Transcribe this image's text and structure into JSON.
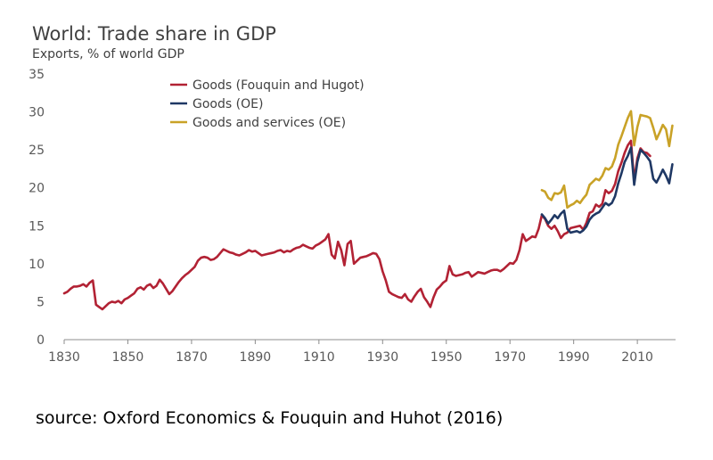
{
  "chart_data": {
    "type": "line",
    "title": "World: Trade share in GDP",
    "ylabel": "Exports, % of world GDP",
    "xlabel": "",
    "xlim": [
      1830,
      2022
    ],
    "ylim": [
      0,
      35
    ],
    "x_ticks": [
      1830,
      1850,
      1870,
      1890,
      1910,
      1930,
      1950,
      1970,
      1990,
      2010
    ],
    "y_ticks": [
      0,
      5,
      10,
      15,
      20,
      25,
      30,
      35
    ],
    "grid": false,
    "legend_position": "top-center",
    "series": [
      {
        "name": "Goods (Fouquin and Hugot)",
        "color": "#B22234",
        "points": [
          [
            1830,
            6.1
          ],
          [
            1831,
            6.3
          ],
          [
            1832,
            6.7
          ],
          [
            1833,
            7.0
          ],
          [
            1834,
            7.0
          ],
          [
            1835,
            7.1
          ],
          [
            1836,
            7.3
          ],
          [
            1837,
            7.0
          ],
          [
            1838,
            7.5
          ],
          [
            1839,
            7.8
          ],
          [
            1840,
            4.6
          ],
          [
            1841,
            4.3
          ],
          [
            1842,
            4.0
          ],
          [
            1843,
            4.4
          ],
          [
            1844,
            4.8
          ],
          [
            1845,
            5.0
          ],
          [
            1846,
            4.9
          ],
          [
            1847,
            5.1
          ],
          [
            1848,
            4.8
          ],
          [
            1849,
            5.3
          ],
          [
            1850,
            5.5
          ],
          [
            1851,
            5.8
          ],
          [
            1852,
            6.1
          ],
          [
            1853,
            6.7
          ],
          [
            1854,
            6.9
          ],
          [
            1855,
            6.6
          ],
          [
            1856,
            7.1
          ],
          [
            1857,
            7.3
          ],
          [
            1858,
            6.8
          ],
          [
            1859,
            7.1
          ],
          [
            1860,
            7.9
          ],
          [
            1861,
            7.4
          ],
          [
            1862,
            6.7
          ],
          [
            1863,
            6.0
          ],
          [
            1864,
            6.4
          ],
          [
            1865,
            7.0
          ],
          [
            1866,
            7.6
          ],
          [
            1867,
            8.1
          ],
          [
            1868,
            8.5
          ],
          [
            1869,
            8.8
          ],
          [
            1870,
            9.2
          ],
          [
            1871,
            9.6
          ],
          [
            1872,
            10.4
          ],
          [
            1873,
            10.8
          ],
          [
            1874,
            10.9
          ],
          [
            1875,
            10.8
          ],
          [
            1876,
            10.5
          ],
          [
            1877,
            10.6
          ],
          [
            1878,
            10.9
          ],
          [
            1879,
            11.4
          ],
          [
            1880,
            11.9
          ],
          [
            1881,
            11.7
          ],
          [
            1882,
            11.5
          ],
          [
            1883,
            11.4
          ],
          [
            1884,
            11.2
          ],
          [
            1885,
            11.1
          ],
          [
            1886,
            11.3
          ],
          [
            1887,
            11.5
          ],
          [
            1888,
            11.8
          ],
          [
            1889,
            11.6
          ],
          [
            1890,
            11.7
          ],
          [
            1891,
            11.4
          ],
          [
            1892,
            11.1
          ],
          [
            1893,
            11.2
          ],
          [
            1894,
            11.3
          ],
          [
            1895,
            11.4
          ],
          [
            1896,
            11.5
          ],
          [
            1897,
            11.7
          ],
          [
            1898,
            11.8
          ],
          [
            1899,
            11.5
          ],
          [
            1900,
            11.7
          ],
          [
            1901,
            11.6
          ],
          [
            1902,
            11.9
          ],
          [
            1903,
            12.1
          ],
          [
            1904,
            12.2
          ],
          [
            1905,
            12.5
          ],
          [
            1906,
            12.3
          ],
          [
            1907,
            12.1
          ],
          [
            1908,
            12.0
          ],
          [
            1909,
            12.4
          ],
          [
            1910,
            12.6
          ],
          [
            1911,
            12.9
          ],
          [
            1912,
            13.2
          ],
          [
            1913,
            13.9
          ],
          [
            1914,
            11.2
          ],
          [
            1915,
            10.7
          ],
          [
            1916,
            12.9
          ],
          [
            1917,
            11.8
          ],
          [
            1918,
            9.8
          ],
          [
            1919,
            12.6
          ],
          [
            1920,
            13.0
          ],
          [
            1921,
            10.0
          ],
          [
            1922,
            10.4
          ],
          [
            1923,
            10.8
          ],
          [
            1924,
            10.9
          ],
          [
            1925,
            11.0
          ],
          [
            1926,
            11.2
          ],
          [
            1927,
            11.4
          ],
          [
            1928,
            11.3
          ],
          [
            1929,
            10.6
          ],
          [
            1930,
            9.0
          ],
          [
            1931,
            7.8
          ],
          [
            1932,
            6.3
          ],
          [
            1933,
            6.0
          ],
          [
            1934,
            5.8
          ],
          [
            1935,
            5.6
          ],
          [
            1936,
            5.5
          ],
          [
            1937,
            6.0
          ],
          [
            1938,
            5.3
          ],
          [
            1939,
            5.0
          ],
          [
            1940,
            5.7
          ],
          [
            1941,
            6.3
          ],
          [
            1942,
            6.7
          ],
          [
            1943,
            5.6
          ],
          [
            1944,
            5.0
          ],
          [
            1945,
            4.3
          ],
          [
            1946,
            5.6
          ],
          [
            1947,
            6.6
          ],
          [
            1948,
            7.0
          ],
          [
            1949,
            7.5
          ],
          [
            1950,
            7.8
          ],
          [
            1951,
            9.7
          ],
          [
            1952,
            8.6
          ],
          [
            1953,
            8.4
          ],
          [
            1954,
            8.5
          ],
          [
            1955,
            8.6
          ],
          [
            1956,
            8.8
          ],
          [
            1957,
            8.9
          ],
          [
            1958,
            8.3
          ],
          [
            1959,
            8.6
          ],
          [
            1960,
            8.9
          ],
          [
            1961,
            8.8
          ],
          [
            1962,
            8.7
          ],
          [
            1963,
            8.9
          ],
          [
            1964,
            9.1
          ],
          [
            1965,
            9.2
          ],
          [
            1966,
            9.2
          ],
          [
            1967,
            9.0
          ],
          [
            1968,
            9.3
          ],
          [
            1969,
            9.7
          ],
          [
            1970,
            10.1
          ],
          [
            1971,
            10.0
          ],
          [
            1972,
            10.5
          ],
          [
            1973,
            11.8
          ],
          [
            1974,
            13.9
          ],
          [
            1975,
            13.0
          ],
          [
            1976,
            13.3
          ],
          [
            1977,
            13.6
          ],
          [
            1978,
            13.5
          ],
          [
            1979,
            14.6
          ],
          [
            1980,
            16.4
          ],
          [
            1981,
            15.9
          ],
          [
            1982,
            15.0
          ],
          [
            1983,
            14.6
          ],
          [
            1984,
            15.0
          ],
          [
            1985,
            14.3
          ],
          [
            1986,
            13.4
          ],
          [
            1987,
            13.9
          ],
          [
            1988,
            14.1
          ],
          [
            1989,
            14.7
          ],
          [
            1990,
            14.8
          ],
          [
            1991,
            14.9
          ],
          [
            1992,
            15.0
          ],
          [
            1993,
            14.5
          ],
          [
            1994,
            15.4
          ],
          [
            1995,
            16.7
          ],
          [
            1996,
            16.9
          ],
          [
            1997,
            17.8
          ],
          [
            1998,
            17.5
          ],
          [
            1999,
            17.9
          ],
          [
            2000,
            19.7
          ],
          [
            2001,
            19.3
          ],
          [
            2002,
            19.6
          ],
          [
            2003,
            20.5
          ],
          [
            2004,
            22.2
          ],
          [
            2005,
            23.3
          ],
          [
            2006,
            24.6
          ],
          [
            2007,
            25.6
          ],
          [
            2008,
            26.2
          ],
          [
            2009,
            21.0
          ],
          [
            2010,
            23.9
          ],
          [
            2011,
            25.2
          ],
          [
            2012,
            24.7
          ],
          [
            2013,
            24.6
          ],
          [
            2014,
            24.2
          ]
        ]
      },
      {
        "name": "Goods (OE)",
        "color": "#1F3864",
        "points": [
          [
            1980,
            16.5
          ],
          [
            1981,
            16.0
          ],
          [
            1982,
            15.3
          ],
          [
            1983,
            15.8
          ],
          [
            1984,
            16.4
          ],
          [
            1985,
            16.0
          ],
          [
            1986,
            16.6
          ],
          [
            1987,
            17.0
          ],
          [
            1988,
            14.6
          ],
          [
            1989,
            14.1
          ],
          [
            1990,
            14.2
          ],
          [
            1991,
            14.3
          ],
          [
            1992,
            14.1
          ],
          [
            1993,
            14.4
          ],
          [
            1994,
            14.9
          ],
          [
            1995,
            15.8
          ],
          [
            1996,
            16.3
          ],
          [
            1997,
            16.6
          ],
          [
            1998,
            16.8
          ],
          [
            1999,
            17.4
          ],
          [
            2000,
            18.0
          ],
          [
            2001,
            17.7
          ],
          [
            2002,
            18.0
          ],
          [
            2003,
            18.9
          ],
          [
            2004,
            20.6
          ],
          [
            2005,
            21.9
          ],
          [
            2006,
            23.4
          ],
          [
            2007,
            24.2
          ],
          [
            2008,
            25.3
          ],
          [
            2009,
            20.4
          ],
          [
            2010,
            23.4
          ],
          [
            2011,
            25.0
          ],
          [
            2012,
            24.6
          ],
          [
            2013,
            24.1
          ],
          [
            2014,
            23.5
          ],
          [
            2015,
            21.2
          ],
          [
            2016,
            20.7
          ],
          [
            2017,
            21.5
          ],
          [
            2018,
            22.4
          ],
          [
            2019,
            21.6
          ],
          [
            2020,
            20.6
          ],
          [
            2021,
            23.1
          ]
        ]
      },
      {
        "name": "Goods and services (OE)",
        "color": "#C9A227",
        "points": [
          [
            1980,
            19.7
          ],
          [
            1981,
            19.5
          ],
          [
            1982,
            18.7
          ],
          [
            1983,
            18.4
          ],
          [
            1984,
            19.3
          ],
          [
            1985,
            19.2
          ],
          [
            1986,
            19.4
          ],
          [
            1987,
            20.3
          ],
          [
            1988,
            17.4
          ],
          [
            1989,
            17.7
          ],
          [
            1990,
            17.9
          ],
          [
            1991,
            18.3
          ],
          [
            1992,
            18.0
          ],
          [
            1993,
            18.6
          ],
          [
            1994,
            19.1
          ],
          [
            1995,
            20.4
          ],
          [
            1996,
            20.8
          ],
          [
            1997,
            21.2
          ],
          [
            1998,
            21.0
          ],
          [
            1999,
            21.6
          ],
          [
            2000,
            22.6
          ],
          [
            2001,
            22.4
          ],
          [
            2002,
            22.8
          ],
          [
            2003,
            23.9
          ],
          [
            2004,
            25.7
          ],
          [
            2005,
            26.8
          ],
          [
            2006,
            28.0
          ],
          [
            2007,
            29.2
          ],
          [
            2008,
            30.1
          ],
          [
            2009,
            25.6
          ],
          [
            2010,
            28.0
          ],
          [
            2011,
            29.6
          ],
          [
            2012,
            29.5
          ],
          [
            2013,
            29.4
          ],
          [
            2014,
            29.2
          ],
          [
            2015,
            27.9
          ],
          [
            2016,
            26.4
          ],
          [
            2017,
            27.3
          ],
          [
            2018,
            28.3
          ],
          [
            2019,
            27.7
          ],
          [
            2020,
            25.5
          ],
          [
            2021,
            28.2
          ]
        ]
      }
    ]
  },
  "source_note": "source: Oxford Economics & Fouquin and Huhot (2016)"
}
